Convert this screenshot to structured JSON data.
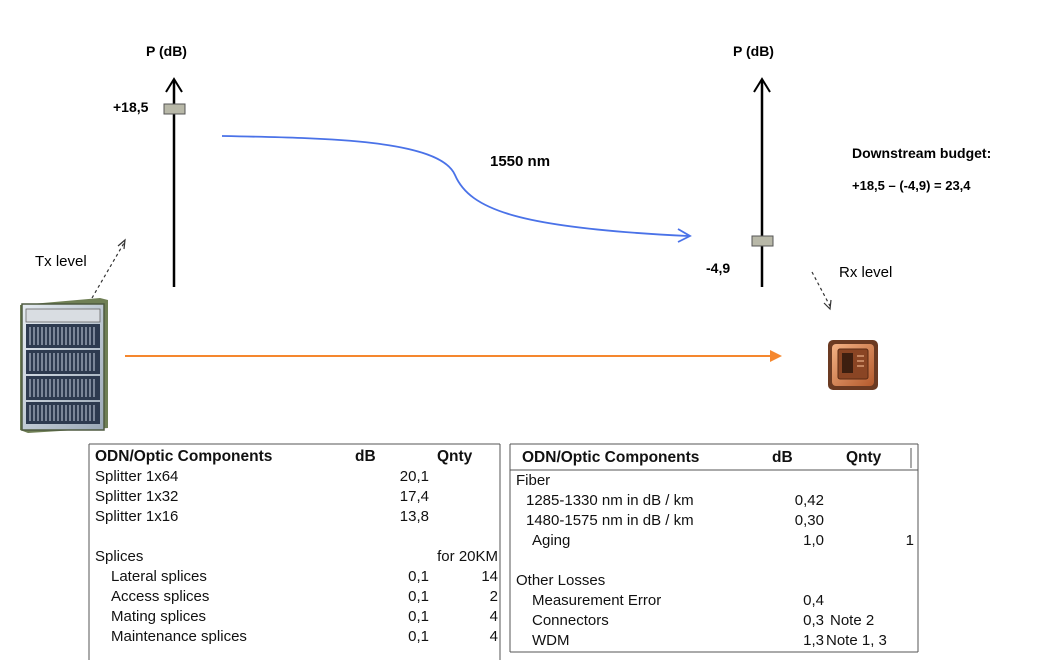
{
  "top": {
    "left_axis_label": "P (dB)",
    "right_axis_label": "P (dB)",
    "tx_value": "+18,5",
    "rx_value": "-4,9",
    "wavelength": "1550 nm",
    "tx_level": "Tx level",
    "rx_level": "Rx level",
    "budget_title": "Downstream budget:",
    "budget_formula": "+18,5 – (-4,9) = 23,4"
  },
  "table_left": {
    "headers": [
      "ODN/Optic Components",
      "dB",
      "Qnty"
    ],
    "rows": [
      {
        "name": "Splitter 1x64",
        "db": "20,1",
        "qty": ""
      },
      {
        "name": "Splitter 1x32",
        "db": "17,4",
        "qty": ""
      },
      {
        "name": "Splitter 1x16",
        "db": "13,8",
        "qty": ""
      },
      {
        "name": "",
        "db": "",
        "qty": ""
      },
      {
        "name": "Splices",
        "db": "",
        "qty": "for 20KM"
      },
      {
        "name": "Lateral splices",
        "db": "0,1",
        "qty": "14"
      },
      {
        "name": "Access splices",
        "db": "0,1",
        "qty": "2"
      },
      {
        "name": "Mating splices",
        "db": "0,1",
        "qty": "4"
      },
      {
        "name": "Maintenance splices",
        "db": "0,1",
        "qty": "4"
      }
    ]
  },
  "table_right": {
    "headers": [
      "ODN/Optic Components",
      "dB",
      "Qnty"
    ],
    "rows": [
      {
        "name": "Fiber",
        "db": "",
        "qty": ""
      },
      {
        "name": "1285-1330 nm in dB / km",
        "db": "0,42",
        "qty": ""
      },
      {
        "name": "1480-1575 nm in dB / km",
        "db": "0,30",
        "qty": ""
      },
      {
        "name": "Aging",
        "db": "1,0",
        "qty": "1"
      },
      {
        "name": "",
        "db": "",
        "qty": ""
      },
      {
        "name": "Other Losses",
        "db": "",
        "qty": ""
      },
      {
        "name": "Measurement Error",
        "db": "0,4",
        "qty": ""
      },
      {
        "name": "Connectors",
        "db": "0,3",
        "qty": "Note 2"
      },
      {
        "name": "WDM",
        "db": "1,3",
        "qty": "Note 1, 3"
      }
    ]
  },
  "colors": {
    "blue_signal": "#4a72e8",
    "orange_fiber": "#f5872e",
    "slider": "#b8b8a8"
  }
}
